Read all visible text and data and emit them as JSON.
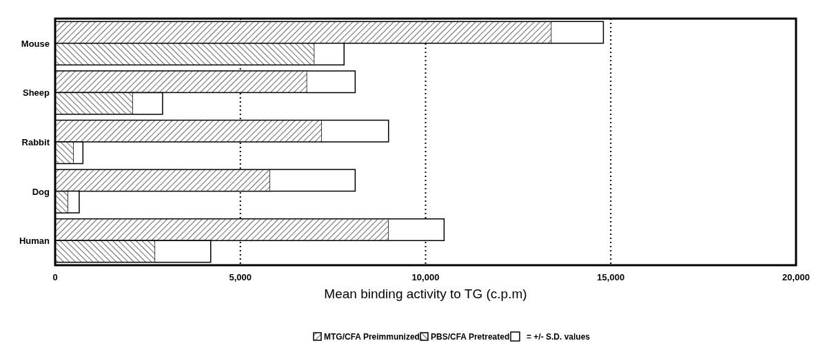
{
  "chart_data": {
    "type": "bar",
    "orientation": "horizontal",
    "xlabel": "Mean binding activity to TG (c.p.m)",
    "categories": [
      "Mouse",
      "Sheep",
      "Rabbit",
      "Dog",
      "Human"
    ],
    "series": [
      {
        "name": "MTG/CFA Preimmunized",
        "color": "#000000",
        "values": [
          13400,
          6800,
          7200,
          5800,
          9000
        ],
        "errors": [
          1400,
          1300,
          1800,
          2300,
          1500
        ]
      },
      {
        "name": "PBS/CFA Pretreated",
        "color": "#000000",
        "values": [
          7000,
          2100,
          500,
          350,
          2700
        ],
        "errors": [
          800,
          800,
          250,
          300,
          1500
        ]
      }
    ],
    "xlim": [
      0,
      20000
    ],
    "xticks": [
      0,
      {
        "value": 5000,
        "label": "5,000"
      },
      {
        "value": 10000,
        "label": "10,000"
      },
      {
        "value": 15000,
        "label": "15,000"
      },
      {
        "value": 20000,
        "label": "20,000"
      }
    ],
    "grid": "x",
    "line_style": "dotted",
    "legend": "bottom",
    "annotations": [
      "= +/- S.D. values"
    ]
  }
}
